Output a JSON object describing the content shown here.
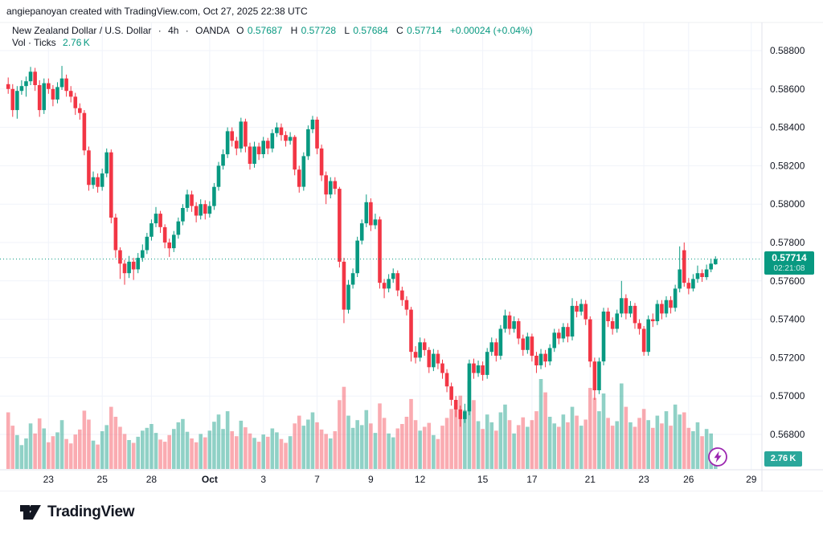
{
  "header": {
    "credit": "angiepanoyan created with TradingView.com, Oct 27, 2025 22:38 UTC"
  },
  "legend": {
    "title": "New Zealand Dollar / U.S. Dollar",
    "sep1": "·",
    "interval": "4h",
    "sep2": "·",
    "exchange": "OANDA",
    "o_label": "O",
    "o": "0.57687",
    "h_label": "H",
    "h": "0.57728",
    "l_label": "L",
    "l": "0.57684",
    "c_label": "C",
    "c": "0.57714",
    "change": "+0.00024 (+0.04%)",
    "vol_label": "Vol · Ticks",
    "vol_value": "2.76 K"
  },
  "badges": {
    "last_price": "0.57714",
    "countdown": "02:21:08",
    "volume": "2.76 K"
  },
  "footer": {
    "brand": "TradingView"
  },
  "colors": {
    "up": "#089981",
    "down": "#f23645",
    "vol_up": "rgba(8,153,129,0.45)",
    "vol_down": "rgba(242,54,69,0.42)",
    "grid": "#f0f3fa",
    "separator": "#e0e3eb",
    "text": "#131722",
    "price_line": "#089981",
    "badge_bg": "#089981",
    "volume_badge_bg": "#2aa79b",
    "flash_purple": "#9c27b0"
  },
  "chart_data": {
    "type": "candlestick",
    "title": "New Zealand Dollar / U.S. Dollar",
    "symbol": "NZDUSD",
    "interval": "4h",
    "exchange": "OANDA",
    "last": {
      "o": 0.57687,
      "h": 0.57728,
      "l": 0.57684,
      "c": 0.57714,
      "change": 0.00024,
      "change_pct": 0.04
    },
    "price_line": 0.57714,
    "ylim": [
      0.5666,
      0.5887
    ],
    "y_axis": {
      "ticks": [
        0.588,
        0.586,
        0.584,
        0.582,
        0.58,
        0.578,
        0.576,
        0.574,
        0.572,
        0.57,
        0.568
      ]
    },
    "x_axis": {
      "ticks": [
        {
          "i": 9,
          "label": "23"
        },
        {
          "i": 21,
          "label": "25"
        },
        {
          "i": 32,
          "label": "28"
        },
        {
          "i": 45,
          "label": "Oct",
          "bold": true
        },
        {
          "i": 57,
          "label": "3"
        },
        {
          "i": 69,
          "label": "7"
        },
        {
          "i": 81,
          "label": "9"
        },
        {
          "i": 92,
          "label": "12"
        },
        {
          "i": 106,
          "label": "15"
        },
        {
          "i": 117,
          "label": "17"
        },
        {
          "i": 130,
          "label": "21"
        },
        {
          "i": 142,
          "label": "23"
        },
        {
          "i": 152,
          "label": "26"
        },
        {
          "i": 166,
          "label": "29"
        }
      ]
    },
    "candles": [
      [
        0.58625,
        0.5866,
        0.58575,
        0.586
      ],
      [
        0.586,
        0.58625,
        0.58455,
        0.5849
      ],
      [
        0.5849,
        0.58615,
        0.58445,
        0.5859
      ],
      [
        0.5859,
        0.58645,
        0.5857,
        0.58615
      ],
      [
        0.58615,
        0.58665,
        0.5856,
        0.5864
      ],
      [
        0.5864,
        0.58715,
        0.5862,
        0.5869
      ],
      [
        0.5869,
        0.5871,
        0.5859,
        0.5862
      ],
      [
        0.5862,
        0.58645,
        0.58455,
        0.5849
      ],
      [
        0.5849,
        0.58655,
        0.5847,
        0.5863
      ],
      [
        0.5863,
        0.58655,
        0.58575,
        0.586
      ],
      [
        0.586,
        0.5862,
        0.5851,
        0.58545
      ],
      [
        0.58545,
        0.58635,
        0.58525,
        0.5861
      ],
      [
        0.5861,
        0.5872,
        0.58595,
        0.58655
      ],
      [
        0.58655,
        0.58675,
        0.5856,
        0.5859
      ],
      [
        0.5859,
        0.58615,
        0.5853,
        0.5856
      ],
      [
        0.5856,
        0.5858,
        0.58465,
        0.585
      ],
      [
        0.585,
        0.58525,
        0.5844,
        0.58475
      ],
      [
        0.58475,
        0.5849,
        0.58255,
        0.5828
      ],
      [
        0.5828,
        0.583,
        0.5807,
        0.581
      ],
      [
        0.581,
        0.5817,
        0.5808,
        0.5814
      ],
      [
        0.5814,
        0.5816,
        0.5806,
        0.5809
      ],
      [
        0.5809,
        0.58185,
        0.5807,
        0.5816
      ],
      [
        0.5816,
        0.5829,
        0.5814,
        0.5827
      ],
      [
        0.5827,
        0.58285,
        0.579,
        0.5793
      ],
      [
        0.5793,
        0.5795,
        0.5772,
        0.5776
      ],
      [
        0.5776,
        0.57775,
        0.5761,
        0.5769
      ],
      [
        0.5769,
        0.5771,
        0.5758,
        0.5764
      ],
      [
        0.5764,
        0.5773,
        0.57615,
        0.577
      ],
      [
        0.577,
        0.5772,
        0.57605,
        0.5766
      ],
      [
        0.5766,
        0.57745,
        0.5764,
        0.5772
      ],
      [
        0.5772,
        0.5779,
        0.577,
        0.5776
      ],
      [
        0.5776,
        0.5785,
        0.5774,
        0.5783
      ],
      [
        0.5783,
        0.5792,
        0.5781,
        0.579
      ],
      [
        0.579,
        0.57985,
        0.5788,
        0.5795
      ],
      [
        0.5795,
        0.57965,
        0.5785,
        0.5788
      ],
      [
        0.5788,
        0.57895,
        0.5777,
        0.578
      ],
      [
        0.578,
        0.5782,
        0.57725,
        0.5777
      ],
      [
        0.5777,
        0.5786,
        0.5775,
        0.5784
      ],
      [
        0.5784,
        0.5793,
        0.5782,
        0.5791
      ],
      [
        0.5791,
        0.58,
        0.5789,
        0.5798
      ],
      [
        0.5798,
        0.58075,
        0.5796,
        0.5805
      ],
      [
        0.5805,
        0.5807,
        0.5796,
        0.5799
      ],
      [
        0.5799,
        0.5801,
        0.57905,
        0.5794
      ],
      [
        0.5794,
        0.58025,
        0.5792,
        0.58
      ],
      [
        0.58,
        0.5802,
        0.5792,
        0.5795
      ],
      [
        0.5795,
        0.58015,
        0.5793,
        0.5799
      ],
      [
        0.5799,
        0.5811,
        0.5797,
        0.5809
      ],
      [
        0.5809,
        0.5822,
        0.5807,
        0.582
      ],
      [
        0.582,
        0.58285,
        0.5818,
        0.5826
      ],
      [
        0.5826,
        0.584,
        0.5824,
        0.5838
      ],
      [
        0.5838,
        0.584,
        0.583,
        0.5833
      ],
      [
        0.5833,
        0.5835,
        0.58255,
        0.5829
      ],
      [
        0.5829,
        0.5845,
        0.5827,
        0.5843
      ],
      [
        0.5843,
        0.58445,
        0.5827,
        0.583
      ],
      [
        0.583,
        0.5832,
        0.5818,
        0.5821
      ],
      [
        0.5821,
        0.58325,
        0.5819,
        0.583
      ],
      [
        0.583,
        0.5832,
        0.5823,
        0.5826
      ],
      [
        0.5826,
        0.5835,
        0.5824,
        0.5833
      ],
      [
        0.5833,
        0.58345,
        0.5826,
        0.5829
      ],
      [
        0.5829,
        0.5839,
        0.5827,
        0.5837
      ],
      [
        0.5837,
        0.58425,
        0.5835,
        0.584
      ],
      [
        0.584,
        0.5842,
        0.5833,
        0.5836
      ],
      [
        0.5836,
        0.5838,
        0.583,
        0.5833
      ],
      [
        0.5833,
        0.58375,
        0.5831,
        0.5835
      ],
      [
        0.5835,
        0.5836,
        0.5815,
        0.5818
      ],
      [
        0.5818,
        0.582,
        0.5806,
        0.5809
      ],
      [
        0.5809,
        0.5827,
        0.5807,
        0.5825
      ],
      [
        0.5825,
        0.5841,
        0.5823,
        0.5839
      ],
      [
        0.5839,
        0.5846,
        0.5837,
        0.5844
      ],
      [
        0.5844,
        0.58455,
        0.5826,
        0.5829
      ],
      [
        0.5829,
        0.5831,
        0.5812,
        0.5815
      ],
      [
        0.5815,
        0.5817,
        0.58,
        0.5805
      ],
      [
        0.5805,
        0.5814,
        0.5803,
        0.5812
      ],
      [
        0.5812,
        0.5814,
        0.5805,
        0.5808
      ],
      [
        0.5808,
        0.5809,
        0.5767,
        0.577
      ],
      [
        0.577,
        0.5772,
        0.5738,
        0.5745
      ],
      [
        0.5745,
        0.57605,
        0.5743,
        0.5758
      ],
      [
        0.5758,
        0.57665,
        0.5756,
        0.5764
      ],
      [
        0.5764,
        0.5783,
        0.5762,
        0.5781
      ],
      [
        0.5781,
        0.5792,
        0.5779,
        0.579
      ],
      [
        0.579,
        0.5805,
        0.5788,
        0.5801
      ],
      [
        0.5801,
        0.5803,
        0.5786,
        0.5789
      ],
      [
        0.5789,
        0.5795,
        0.5787,
        0.5792
      ],
      [
        0.5792,
        0.57935,
        0.5756,
        0.5759
      ],
      [
        0.5759,
        0.5761,
        0.5751,
        0.5756
      ],
      [
        0.5756,
        0.57635,
        0.5754,
        0.5761
      ],
      [
        0.5761,
        0.57665,
        0.5759,
        0.5764
      ],
      [
        0.5764,
        0.57655,
        0.5752,
        0.5755
      ],
      [
        0.5755,
        0.5757,
        0.5747,
        0.575
      ],
      [
        0.575,
        0.5752,
        0.5742,
        0.5745
      ],
      [
        0.5745,
        0.57465,
        0.5718,
        0.5723
      ],
      [
        0.5723,
        0.5726,
        0.5717,
        0.572
      ],
      [
        0.572,
        0.57305,
        0.5718,
        0.5728
      ],
      [
        0.5728,
        0.573,
        0.5721,
        0.5724
      ],
      [
        0.5724,
        0.57255,
        0.5712,
        0.5715
      ],
      [
        0.5715,
        0.57245,
        0.5713,
        0.5722
      ],
      [
        0.5722,
        0.5724,
        0.5714,
        0.5717
      ],
      [
        0.5717,
        0.5719,
        0.5709,
        0.5712
      ],
      [
        0.5712,
        0.5714,
        0.5702,
        0.5705
      ],
      [
        0.5705,
        0.5707,
        0.5695,
        0.5698
      ],
      [
        0.5698,
        0.57,
        0.5689,
        0.5693
      ],
      [
        0.5693,
        0.5695,
        0.5684,
        0.5688
      ],
      [
        0.5688,
        0.5696,
        0.5686,
        0.5692
      ],
      [
        0.5692,
        0.5719,
        0.569,
        0.5717
      ],
      [
        0.5717,
        0.57195,
        0.5709,
        0.5712
      ],
      [
        0.5712,
        0.57185,
        0.571,
        0.5716
      ],
      [
        0.5716,
        0.5718,
        0.5708,
        0.5711
      ],
      [
        0.5711,
        0.5725,
        0.5709,
        0.5723
      ],
      [
        0.5723,
        0.57305,
        0.5721,
        0.5728
      ],
      [
        0.5728,
        0.573,
        0.5718,
        0.5721
      ],
      [
        0.5721,
        0.5737,
        0.5719,
        0.5735
      ],
      [
        0.5735,
        0.5745,
        0.5733,
        0.5742
      ],
      [
        0.5742,
        0.5744,
        0.5732,
        0.5735
      ],
      [
        0.5735,
        0.57415,
        0.5733,
        0.5739
      ],
      [
        0.5739,
        0.57405,
        0.5727,
        0.573
      ],
      [
        0.573,
        0.5732,
        0.5721,
        0.5724
      ],
      [
        0.5724,
        0.5733,
        0.5722,
        0.5731
      ],
      [
        0.5731,
        0.57325,
        0.5718,
        0.5721
      ],
      [
        0.5721,
        0.5723,
        0.5712,
        0.5716
      ],
      [
        0.5716,
        0.57245,
        0.5714,
        0.5722
      ],
      [
        0.5722,
        0.5724,
        0.5715,
        0.5718
      ],
      [
        0.5718,
        0.5727,
        0.5716,
        0.5725
      ],
      [
        0.5725,
        0.5735,
        0.5723,
        0.5733
      ],
      [
        0.5733,
        0.5735,
        0.5727,
        0.573
      ],
      [
        0.573,
        0.5738,
        0.5728,
        0.5736
      ],
      [
        0.5736,
        0.5738,
        0.5728,
        0.5731
      ],
      [
        0.5731,
        0.5751,
        0.5729,
        0.5747
      ],
      [
        0.5747,
        0.57495,
        0.5741,
        0.5744
      ],
      [
        0.5744,
        0.57505,
        0.5742,
        0.5748
      ],
      [
        0.5748,
        0.575,
        0.5737,
        0.574
      ],
      [
        0.574,
        0.57415,
        0.5715,
        0.5718
      ],
      [
        0.5718,
        0.572,
        0.5698,
        0.5703
      ],
      [
        0.5703,
        0.572,
        0.5701,
        0.5718
      ],
      [
        0.5718,
        0.5746,
        0.5716,
        0.5744
      ],
      [
        0.5744,
        0.5746,
        0.5736,
        0.5739
      ],
      [
        0.5739,
        0.5741,
        0.5732,
        0.5735
      ],
      [
        0.5735,
        0.5745,
        0.5733,
        0.5743
      ],
      [
        0.5743,
        0.576,
        0.5741,
        0.5751
      ],
      [
        0.5751,
        0.5753,
        0.574,
        0.5743
      ],
      [
        0.5743,
        0.57495,
        0.5741,
        0.5747
      ],
      [
        0.5747,
        0.57485,
        0.5735,
        0.5738
      ],
      [
        0.5738,
        0.574,
        0.5732,
        0.5735
      ],
      [
        0.5735,
        0.57365,
        0.5721,
        0.5723
      ],
      [
        0.5723,
        0.5742,
        0.5721,
        0.574
      ],
      [
        0.574,
        0.5743,
        0.5736,
        0.5739
      ],
      [
        0.5739,
        0.575,
        0.5737,
        0.5748
      ],
      [
        0.5748,
        0.575,
        0.574,
        0.5743
      ],
      [
        0.5743,
        0.5752,
        0.5741,
        0.575
      ],
      [
        0.575,
        0.5752,
        0.5743,
        0.5746
      ],
      [
        0.5746,
        0.5758,
        0.5744,
        0.5756
      ],
      [
        0.5756,
        0.5778,
        0.5754,
        0.5766
      ],
      [
        0.5776,
        0.578,
        0.5757,
        0.5759
      ],
      [
        0.5759,
        0.57615,
        0.5753,
        0.5756
      ],
      [
        0.5756,
        0.57635,
        0.57545,
        0.5761
      ],
      [
        0.5761,
        0.5768,
        0.5759,
        0.5764
      ],
      [
        0.5764,
        0.5766,
        0.57595,
        0.5762
      ],
      [
        0.5762,
        0.57685,
        0.57605,
        0.5766
      ],
      [
        0.5766,
        0.57715,
        0.57645,
        0.5769
      ],
      [
        0.57687,
        0.57728,
        0.57684,
        0.57714
      ]
    ],
    "volumes_k": [
      10.2,
      7.8,
      6.1,
      4.3,
      5.5,
      8.2,
      6.4,
      9.1,
      7.3,
      4.8,
      5.9,
      6.6,
      8.8,
      5.4,
      4.6,
      6.2,
      7.1,
      10.5,
      8.9,
      5.1,
      4.4,
      6.8,
      7.9,
      11.2,
      9.4,
      7.6,
      6.3,
      5.2,
      4.7,
      5.8,
      6.9,
      7.4,
      8.1,
      6.5,
      5.3,
      4.9,
      6.1,
      7.2,
      8.4,
      9.0,
      6.7,
      5.5,
      4.8,
      6.3,
      5.7,
      6.9,
      8.5,
      9.8,
      7.2,
      10.4,
      6.8,
      5.9,
      8.7,
      7.5,
      6.4,
      5.6,
      4.9,
      6.2,
      5.8,
      7.3,
      6.6,
      5.4,
      4.7,
      5.9,
      8.2,
      9.6,
      7.8,
      8.9,
      10.2,
      8.4,
      7.1,
      6.3,
      5.5,
      6.8,
      12.4,
      14.8,
      9.6,
      7.4,
      8.8,
      7.9,
      10.6,
      8.2,
      6.5,
      11.8,
      9.2,
      6.4,
      5.7,
      7.3,
      8.1,
      9.4,
      12.6,
      8.8,
      6.9,
      7.6,
      8.3,
      6.1,
      5.4,
      7.8,
      9.2,
      10.8,
      11.4,
      13.2,
      10.6,
      15.8,
      12.4,
      8.6,
      7.2,
      9.8,
      8.4,
      6.9,
      10.2,
      11.6,
      8.8,
      6.4,
      7.9,
      9.3,
      7.6,
      8.8,
      10.4,
      16.2,
      13.8,
      9.4,
      8.2,
      7.6,
      9.8,
      8.4,
      11.2,
      9.6,
      7.8,
      8.9,
      14.6,
      12.8,
      10.4,
      13.6,
      9.2,
      7.8,
      8.6,
      15.4,
      11.2,
      8.4,
      7.6,
      9.2,
      10.8,
      8.8,
      7.4,
      9.6,
      8.2,
      10.4,
      7.8,
      11.6,
      9.8,
      10.2,
      7.4,
      6.8,
      8.4,
      5.9,
      7.2,
      6.4,
      2.76
    ]
  }
}
